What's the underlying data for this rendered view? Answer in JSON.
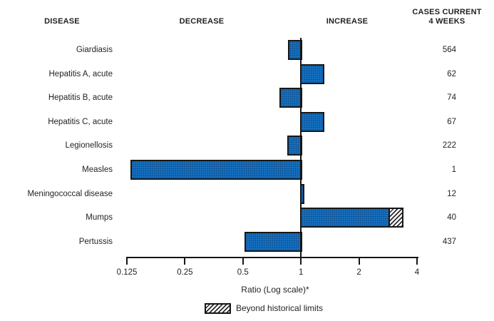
{
  "header": {
    "disease": "DISEASE",
    "decrease": "DECREASE",
    "increase": "INCREASE",
    "cases_line1": "CASES CURRENT",
    "cases_line2": "4 WEEKS"
  },
  "axis": {
    "label": "Ratio (Log scale)*",
    "ticks": [
      {
        "label": "0.125",
        "value": 0.125
      },
      {
        "label": "0.25",
        "value": 0.25
      },
      {
        "label": "0.5",
        "value": 0.5
      },
      {
        "label": "1",
        "value": 1
      },
      {
        "label": "2",
        "value": 2
      },
      {
        "label": "4",
        "value": 4
      }
    ]
  },
  "legend": {
    "beyond_label": "Beyond historical limits"
  },
  "colors": {
    "bar_fill": "#1571c2",
    "bar_border": "#161616",
    "text": "#231f20"
  },
  "chart_data": {
    "type": "bar",
    "orientation": "horizontal",
    "scale": "log",
    "baseline": 1,
    "xlim": [
      0.125,
      4
    ],
    "xlabel": "Ratio (Log scale)*",
    "value_column_header": "CASES CURRENT 4 WEEKS",
    "rows": [
      {
        "disease": "Giardiasis",
        "ratio": 0.86,
        "cases": "564",
        "beyond": false
      },
      {
        "disease": "Hepatitis A, acute",
        "ratio": 1.32,
        "cases": "62",
        "beyond": false
      },
      {
        "disease": "Hepatitis B, acute",
        "ratio": 0.77,
        "cases": "74",
        "beyond": false
      },
      {
        "disease": "Hepatitis C, acute",
        "ratio": 1.32,
        "cases": "67",
        "beyond": false
      },
      {
        "disease": "Legionellosis",
        "ratio": 0.85,
        "cases": "222",
        "beyond": false
      },
      {
        "disease": "Measles",
        "ratio": 0.13,
        "cases": "1",
        "beyond": false
      },
      {
        "disease": "Meningococcal disease",
        "ratio": 1.04,
        "cases": "12",
        "beyond": false
      },
      {
        "disease": "Mumps",
        "ratio": 3.41,
        "cases": "40",
        "beyond": true,
        "beyond_start": 2.95
      },
      {
        "disease": "Pertussis",
        "ratio": 0.51,
        "cases": "437",
        "beyond": false
      }
    ]
  }
}
